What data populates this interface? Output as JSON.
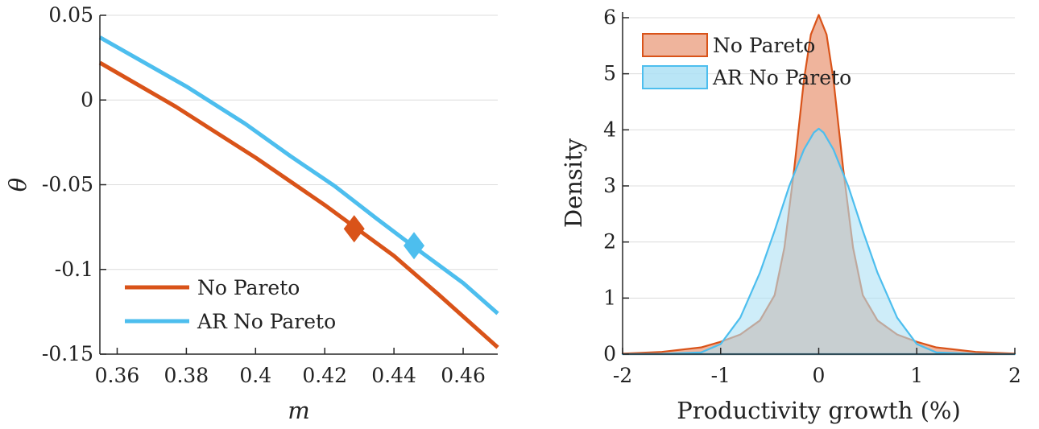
{
  "chart_data": [
    {
      "type": "line",
      "xlabel": "m",
      "ylabel": "θ",
      "xlim": [
        0.355,
        0.47
      ],
      "ylim": [
        -0.15,
        0.05
      ],
      "xticks": [
        "0.36",
        "0.38",
        "0.4",
        "0.42",
        "0.44",
        "0.46"
      ],
      "xtick_values": [
        0.36,
        0.38,
        0.4,
        0.42,
        0.44,
        0.46
      ],
      "yticks": [
        "0.05",
        "0",
        "-0.05",
        "-0.1",
        "-0.15"
      ],
      "ytick_values": [
        0.05,
        0,
        -0.05,
        -0.1,
        -0.15
      ],
      "grid": "horizontal",
      "legend_position": "bottom-left",
      "series": [
        {
          "name": "No Pareto",
          "color": "#D95319",
          "x": [
            0.355,
            0.377,
            0.39,
            0.4,
            0.42,
            0.43,
            0.44,
            0.453,
            0.47
          ],
          "y": [
            0.022,
            -0.004,
            -0.021,
            -0.034,
            -0.062,
            -0.077,
            -0.092,
            -0.115,
            -0.146
          ],
          "marker": {
            "x": 0.4285,
            "y": -0.076,
            "shape": "diamond"
          }
        },
        {
          "name": "AR No Pareto",
          "color": "#4DBEEE",
          "x": [
            0.355,
            0.38,
            0.397,
            0.41,
            0.423,
            0.435,
            0.446,
            0.46,
            0.47
          ],
          "y": [
            0.037,
            0.008,
            -0.014,
            -0.033,
            -0.051,
            -0.07,
            -0.087,
            -0.108,
            -0.126
          ],
          "marker": {
            "x": 0.4458,
            "y": -0.086,
            "shape": "diamond"
          }
        }
      ]
    },
    {
      "type": "area",
      "xlabel": "Productivity growth (%)",
      "ylabel": "Density",
      "xlim": [
        -2,
        2
      ],
      "ylim": [
        0,
        6.1
      ],
      "xticks": [
        "-2",
        "-1",
        "0",
        "1",
        "2"
      ],
      "xtick_values": [
        -2,
        -1,
        0,
        1,
        2
      ],
      "yticks": [
        "0",
        "1",
        "2",
        "3",
        "4",
        "5",
        "6"
      ],
      "ytick_values": [
        0,
        1,
        2,
        3,
        4,
        5,
        6
      ],
      "grid": "horizontal",
      "legend_position": "top-left",
      "series": [
        {
          "name": "No Pareto",
          "color": "#D95319",
          "fill": "#EFB49C",
          "x": [
            -2,
            -1.6,
            -1.2,
            -1.0,
            -0.8,
            -0.6,
            -0.45,
            -0.35,
            -0.25,
            -0.15,
            -0.08,
            0,
            0.08,
            0.15,
            0.25,
            0.35,
            0.45,
            0.6,
            0.8,
            1.0,
            1.2,
            1.6,
            2
          ],
          "y": [
            0.01,
            0.04,
            0.12,
            0.22,
            0.35,
            0.6,
            1.05,
            1.9,
            3.3,
            4.9,
            5.7,
            6.05,
            5.7,
            4.9,
            3.3,
            1.9,
            1.05,
            0.6,
            0.35,
            0.22,
            0.12,
            0.04,
            0.01
          ]
        },
        {
          "name": "AR No Pareto",
          "color": "#4DBEEE",
          "fill": "#ADE1F5",
          "x": [
            -2,
            -1.6,
            -1.2,
            -1.0,
            -0.8,
            -0.6,
            -0.45,
            -0.3,
            -0.15,
            -0.05,
            0,
            0.05,
            0.15,
            0.3,
            0.45,
            0.6,
            0.8,
            1.0,
            1.2,
            1.6,
            2
          ],
          "y": [
            0,
            0.005,
            0.03,
            0.18,
            0.65,
            1.45,
            2.2,
            3.0,
            3.65,
            3.95,
            4.02,
            3.95,
            3.65,
            3.0,
            2.2,
            1.45,
            0.65,
            0.18,
            0.03,
            0.005,
            0
          ]
        }
      ]
    }
  ]
}
